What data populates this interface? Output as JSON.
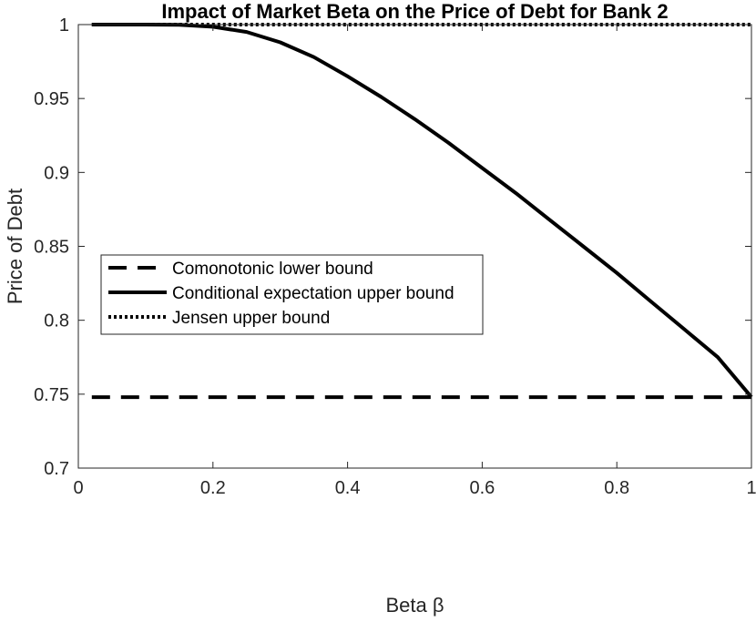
{
  "chart_data": {
    "type": "line",
    "title": "Impact of Market Beta on the Price of Debt for Bank 2",
    "xlabel": "Beta β",
    "ylabel": "Price of Debt",
    "xlim": [
      0,
      1
    ],
    "ylim": [
      0.7,
      1
    ],
    "xticks": [
      0,
      0.2,
      0.4,
      0.6,
      0.8,
      1
    ],
    "xtick_labels": [
      "0",
      "0.2",
      "0.4",
      "0.6",
      "0.8",
      "1"
    ],
    "yticks": [
      0.7,
      0.75,
      0.8,
      0.85,
      0.9,
      0.95,
      1
    ],
    "ytick_labels": [
      "0.7",
      "0.75",
      "0.8",
      "0.85",
      "0.9",
      "0.95",
      "1"
    ],
    "grid": false,
    "legend_position": "center-left",
    "series": [
      {
        "name": "Comonotonic lower bound",
        "style": "dashed",
        "color": "#000000",
        "x": [
          0.02,
          1.0
        ],
        "y": [
          0.748,
          0.748
        ]
      },
      {
        "name": "Conditional expectation upper bound",
        "style": "solid",
        "color": "#000000",
        "x": [
          0.02,
          0.1,
          0.15,
          0.2,
          0.25,
          0.3,
          0.35,
          0.4,
          0.45,
          0.5,
          0.55,
          0.6,
          0.65,
          0.7,
          0.75,
          0.8,
          0.85,
          0.9,
          0.95,
          1.0
        ],
        "y": [
          1.0,
          1.0,
          0.9998,
          0.9985,
          0.995,
          0.988,
          0.978,
          0.965,
          0.951,
          0.936,
          0.92,
          0.903,
          0.886,
          0.868,
          0.85,
          0.832,
          0.813,
          0.794,
          0.775,
          0.748
        ]
      },
      {
        "name": "Jensen upper bound",
        "style": "dotted",
        "color": "#000000",
        "x": [
          0.02,
          1.0
        ],
        "y": [
          1.0,
          1.0
        ]
      }
    ]
  }
}
